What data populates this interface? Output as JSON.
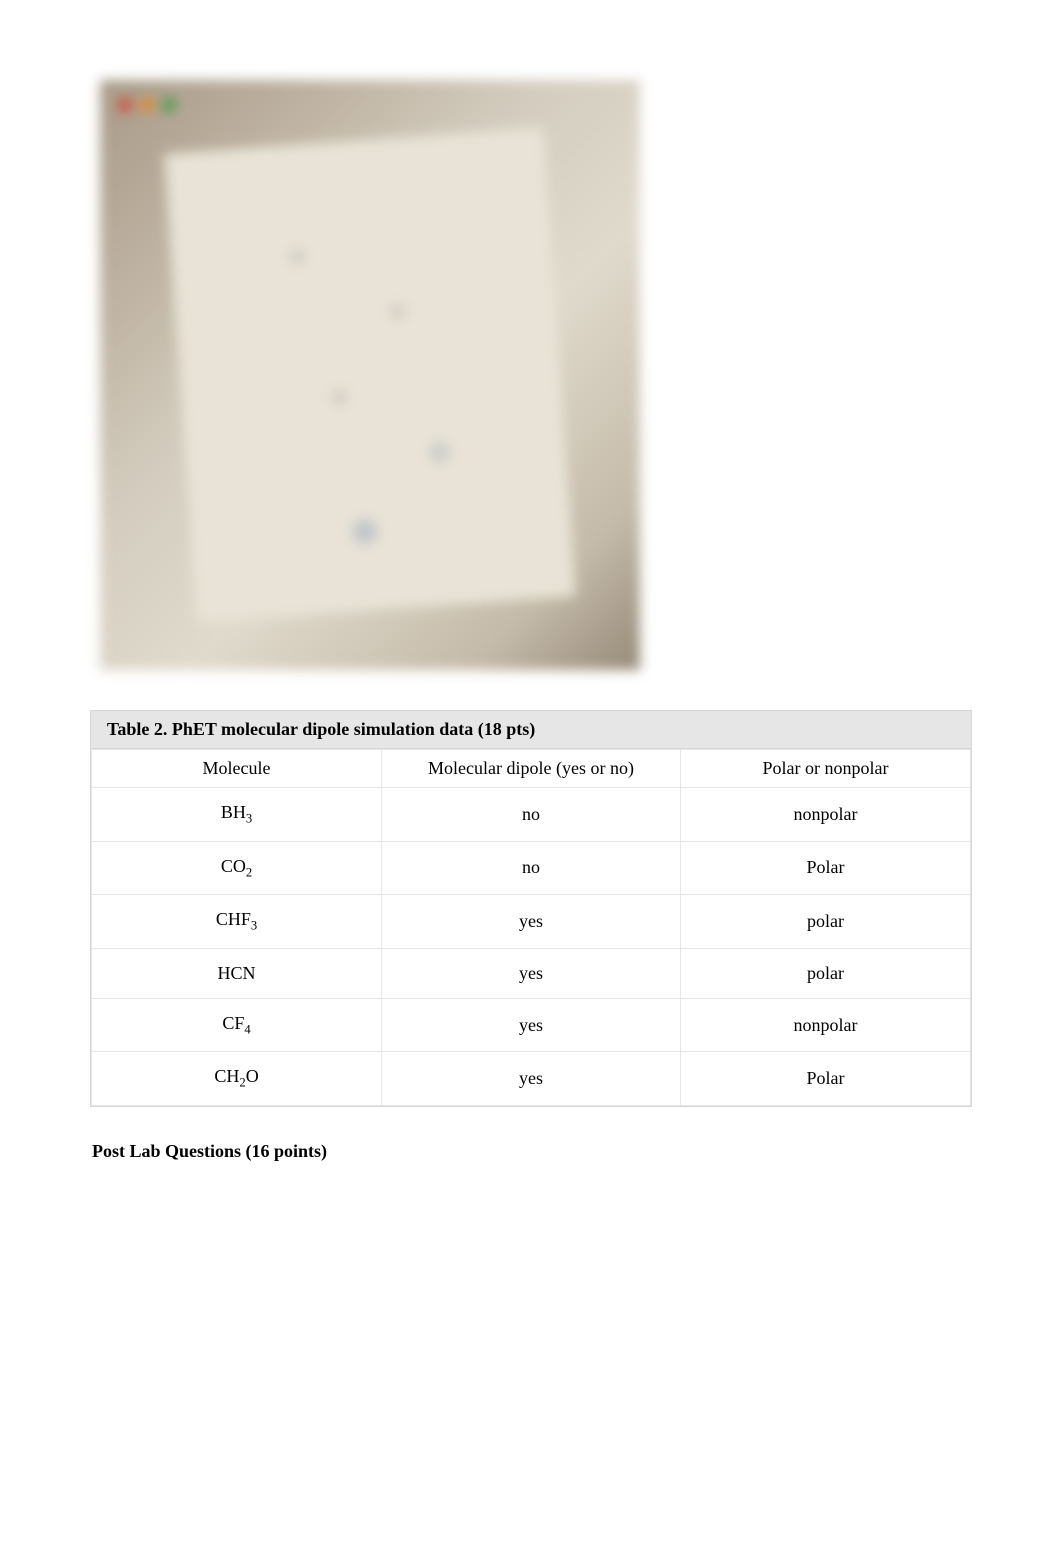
{
  "photo": {
    "dot_colors": [
      "#d24a3a",
      "#e08a2a",
      "#4a9a4a"
    ]
  },
  "table2": {
    "title": "Table 2. PhET molecular dipole simulation data (18 pts)",
    "columns": [
      "Molecule",
      "Molecular dipole (yes or no)",
      "Polar or nonpolar"
    ],
    "rows": [
      {
        "molecule_html": "BH<sub>3</sub>",
        "dipole": "no",
        "polarity": "nonpolar"
      },
      {
        "molecule_html": "CO<sub>2</sub>",
        "dipole": "no",
        "polarity": "Polar"
      },
      {
        "molecule_html": "CHF<sub>3</sub>",
        "dipole": "yes",
        "polarity": "polar"
      },
      {
        "molecule_html": "HCN",
        "dipole": "yes",
        "polarity": "polar"
      },
      {
        "molecule_html": "CF<sub>4</sub>",
        "dipole": "yes",
        "polarity": "nonpolar"
      },
      {
        "molecule_html": "CH<sub>2</sub>O",
        "dipole": "yes",
        "polarity": "Polar"
      }
    ]
  },
  "postlab_heading": "Post Lab Questions (16 points)"
}
